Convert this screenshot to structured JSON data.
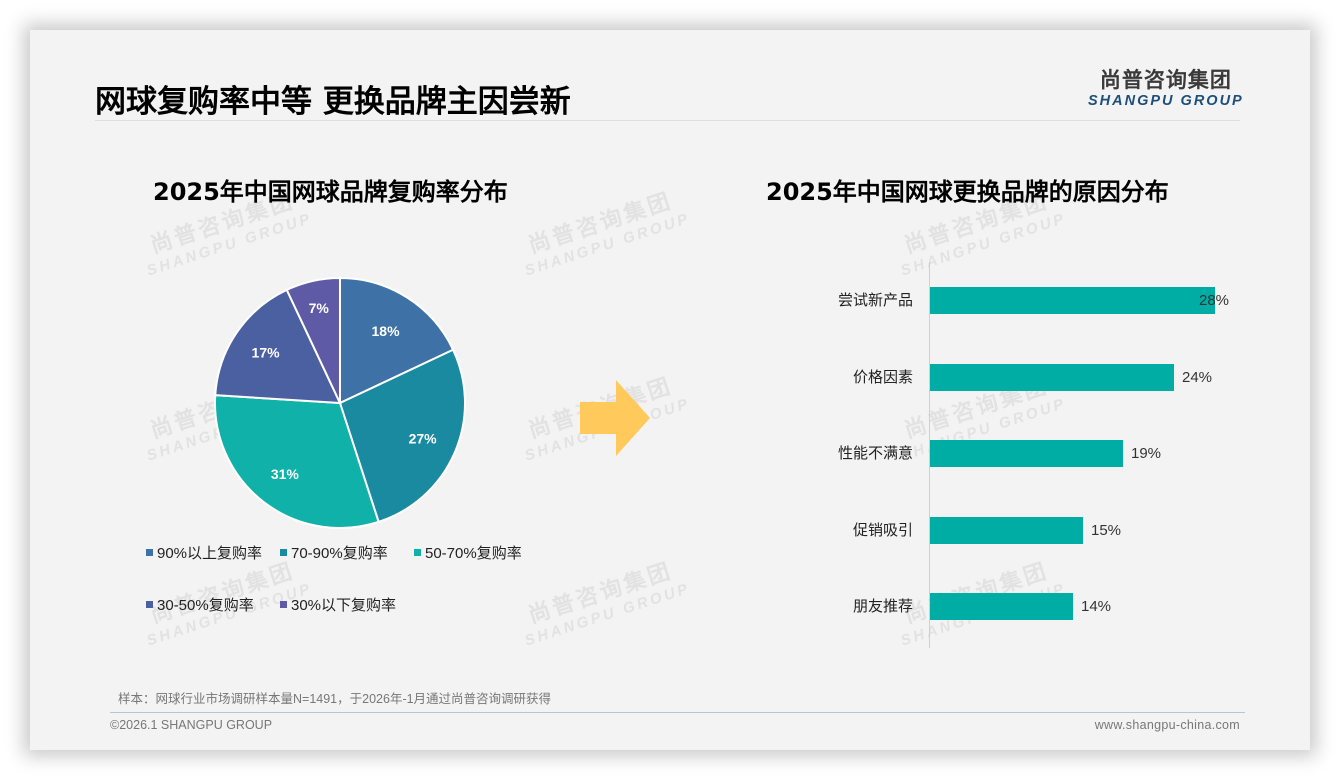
{
  "page": {
    "title": "网球复购率中等 更换品牌主因尝新",
    "logo_cn": "尚普咨询集团",
    "logo_en": "SHANGPU GROUP",
    "watermark_cn": "尚普咨询集团",
    "watermark_en": "SHANGPU GROUP"
  },
  "left_chart": {
    "title": "2025年中国网球品牌复购率分布"
  },
  "right_chart": {
    "title": "2025年中国网球更换品牌的原因分布"
  },
  "footer": {
    "note": "样本：网球行业市场调研样本量N=1491，于2026年-1月通过尚普咨询调研获得",
    "copyright": "©2026.1 SHANGPU GROUP",
    "website": "www.shangpu-china.com"
  },
  "colors": {
    "accent_bar": "#00ADA4",
    "arrow": "#FFC95C",
    "logo_en": "#1E4F7A"
  },
  "chart_data": [
    {
      "type": "pie",
      "title": "2025年中国网球品牌复购率分布",
      "categories": [
        "90%以上复购率",
        "70-90%复购率",
        "50-70%复购率",
        "30-50%复购率",
        "30%以下复购率"
      ],
      "values": [
        18,
        27,
        31,
        17,
        7
      ],
      "labels": [
        "18%",
        "27%",
        "31%",
        "17%",
        "7%"
      ],
      "colors": [
        "#3E72A6",
        "#1A8AA0",
        "#0FB1A8",
        "#4A60A0",
        "#5E5AA6"
      ],
      "start_angle": "12 o'clock",
      "direction": "clockwise",
      "legend_position": "bottom"
    },
    {
      "type": "bar",
      "orientation": "horizontal",
      "title": "2025年中国网球更换品牌的原因分布",
      "categories": [
        "尝试新产品",
        "价格因素",
        "性能不满意",
        "促销吸引",
        "朋友推荐"
      ],
      "values": [
        28,
        24,
        19,
        15,
        14
      ],
      "labels": [
        "28%",
        "24%",
        "19%",
        "15%",
        "14%"
      ],
      "color": "#00ADA4",
      "xlim": [
        0,
        28
      ],
      "grid": false,
      "legend": "none"
    }
  ]
}
